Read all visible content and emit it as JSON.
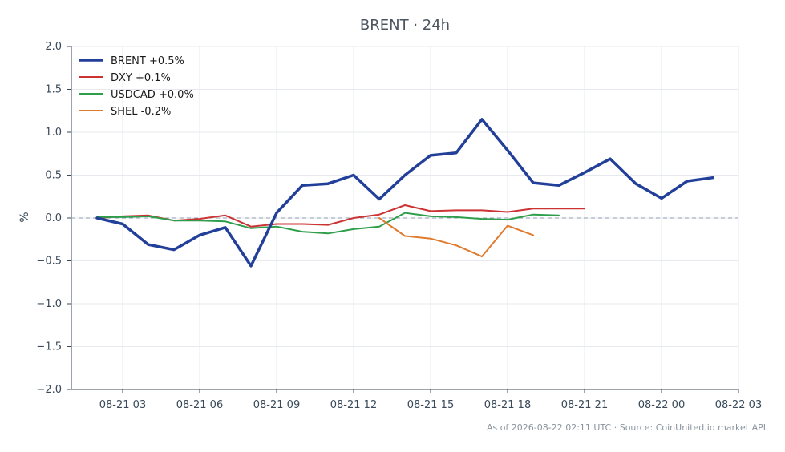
{
  "chart_data": {
    "type": "line",
    "title": "BRENT · 24h",
    "xlabel": "",
    "ylabel": "%",
    "x_ticks": [
      "08-21 03",
      "08-21 06",
      "08-21 09",
      "08-21 12",
      "08-21 15",
      "08-21 18",
      "08-21 21",
      "08-22 00",
      "08-22 03"
    ],
    "y_ticks": [
      "2.0",
      "1.5",
      "1.0",
      "0.5",
      "0.0",
      "−0.5",
      "−1.0",
      "−1.5",
      "−2.0"
    ],
    "ylim": [
      -2.0,
      2.0
    ],
    "xlim_hours": [
      1.0,
      27.0
    ],
    "grid": true,
    "legend_position": "top-left",
    "reference_line": 0.0,
    "series": [
      {
        "name": "BRENT +0.5%",
        "color": "#223f99",
        "width": "thick",
        "points": [
          [
            2,
            0.0
          ],
          [
            3,
            -0.07
          ],
          [
            4,
            -0.31
          ],
          [
            5,
            -0.37
          ],
          [
            6,
            -0.2
          ],
          [
            7,
            -0.11
          ],
          [
            8,
            -0.56
          ],
          [
            9,
            0.06
          ],
          [
            10,
            0.38
          ],
          [
            11,
            0.4
          ],
          [
            12,
            0.5
          ],
          [
            13,
            0.22
          ],
          [
            14,
            0.5
          ],
          [
            15,
            0.73
          ],
          [
            16,
            0.76
          ],
          [
            17,
            1.15
          ],
          [
            18,
            0.79
          ],
          [
            19,
            0.41
          ],
          [
            20,
            0.38
          ],
          [
            21,
            0.53
          ],
          [
            22,
            0.69
          ],
          [
            23,
            0.4
          ],
          [
            24,
            0.23
          ],
          [
            25,
            0.43
          ],
          [
            26,
            0.47
          ]
        ]
      },
      {
        "name": "DXY +0.1%",
        "color": "#cc3333",
        "width": "normal",
        "points": [
          [
            2,
            0.0
          ],
          [
            3,
            0.02
          ],
          [
            4,
            0.03
          ],
          [
            5,
            -0.03
          ],
          [
            6,
            -0.01
          ],
          [
            7,
            0.03
          ],
          [
            8,
            -0.1
          ],
          [
            9,
            -0.07
          ],
          [
            10,
            -0.07
          ],
          [
            11,
            -0.08
          ],
          [
            12,
            0.0
          ],
          [
            13,
            0.04
          ],
          [
            14,
            0.15
          ],
          [
            15,
            0.08
          ],
          [
            16,
            0.09
          ],
          [
            17,
            0.09
          ],
          [
            18,
            0.07
          ],
          [
            19,
            0.11
          ],
          [
            20,
            0.11
          ],
          [
            21,
            0.11
          ]
        ]
      },
      {
        "name": "USDCAD +0.0%",
        "color": "#2e9e4a",
        "width": "normal",
        "points": [
          [
            2,
            0.01
          ],
          [
            3,
            0.01
          ],
          [
            4,
            0.02
          ],
          [
            5,
            -0.03
          ],
          [
            6,
            -0.03
          ],
          [
            7,
            -0.04
          ],
          [
            8,
            -0.12
          ],
          [
            9,
            -0.1
          ],
          [
            10,
            -0.16
          ],
          [
            11,
            -0.18
          ],
          [
            12,
            -0.13
          ],
          [
            13,
            -0.1
          ],
          [
            14,
            0.06
          ],
          [
            15,
            0.02
          ],
          [
            16,
            0.01
          ],
          [
            17,
            -0.01
          ],
          [
            18,
            -0.02
          ],
          [
            19,
            0.04
          ],
          [
            20,
            0.03
          ]
        ]
      },
      {
        "name": "SHEL -0.2%",
        "color": "#e07a2e",
        "width": "normal",
        "points": [
          [
            13,
            0.0
          ],
          [
            14,
            -0.21
          ],
          [
            15,
            -0.24
          ],
          [
            16,
            -0.32
          ],
          [
            17,
            -0.45
          ],
          [
            18,
            -0.09
          ],
          [
            19,
            -0.2
          ]
        ]
      }
    ]
  },
  "footer": {
    "text": "As of 2026-08-22 02:11 UTC · Source: CoinUnited.io market API"
  }
}
